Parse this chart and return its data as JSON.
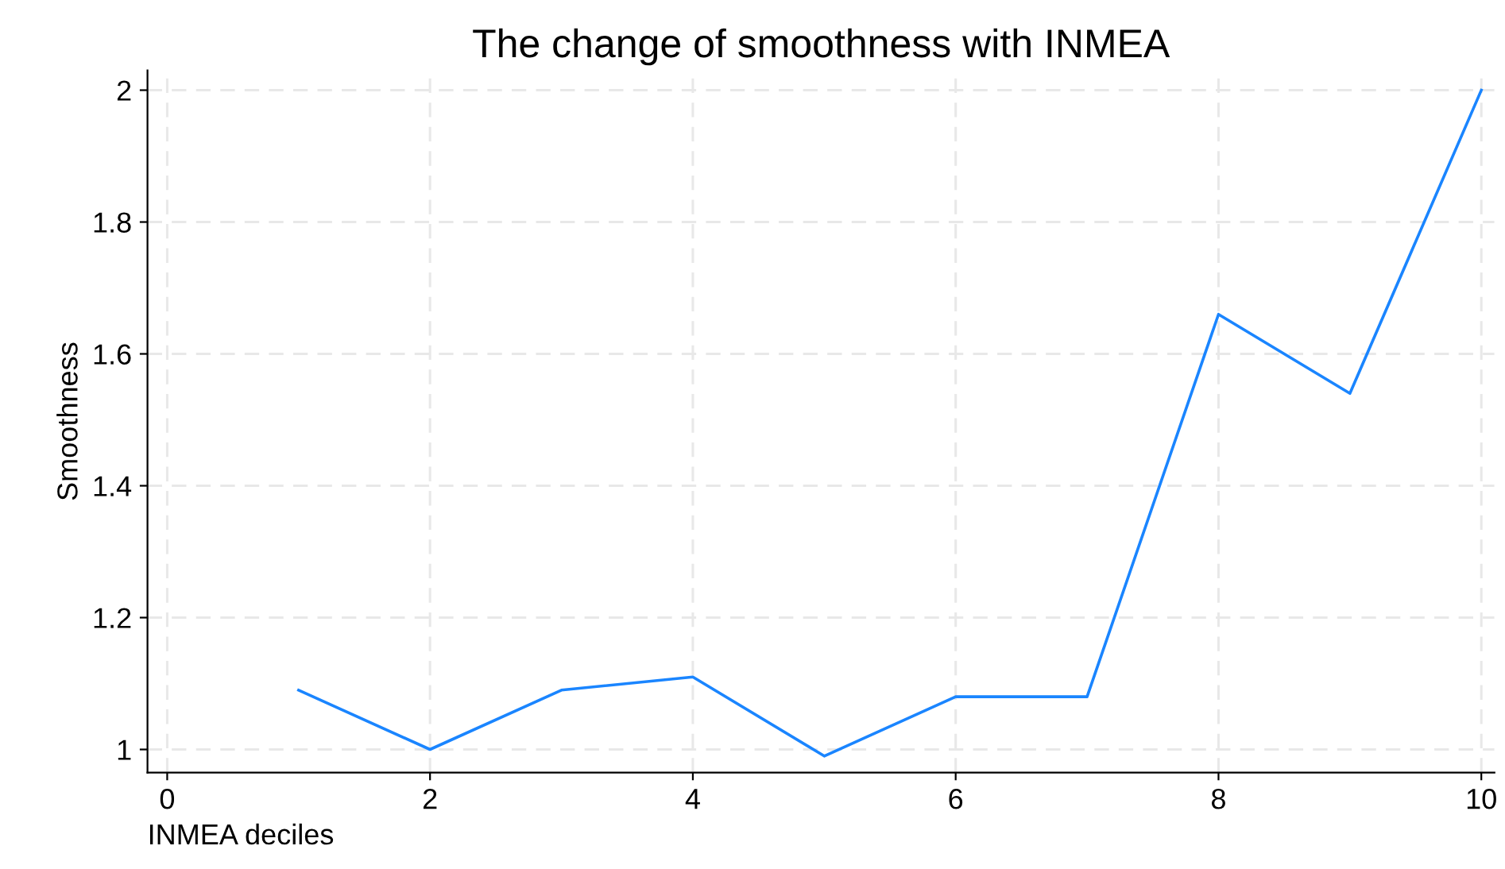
{
  "chart_data": {
    "type": "line",
    "title": "The change of smoothness with INMEA",
    "xlabel": "INMEA deciles",
    "ylabel": "Smoothness",
    "x": [
      1,
      2,
      3,
      4,
      5,
      6,
      7,
      8,
      9,
      10
    ],
    "series": [
      {
        "color": "#1a85ff",
        "values": [
          1.09,
          1.0,
          1.09,
          1.11,
          0.99,
          1.08,
          1.08,
          1.66,
          1.54,
          2.0
        ]
      }
    ],
    "xlim": [
      -0.15,
      10.1
    ],
    "ylim": [
      0.965,
      2.03
    ],
    "xticks": [
      0,
      2,
      4,
      6,
      8,
      10
    ],
    "yticks": [
      1,
      {
        "value": 1.2,
        "label": "1.2"
      },
      {
        "value": 1.4,
        "label": "1.4"
      },
      {
        "value": 1.6,
        "label": "1.6"
      },
      {
        "value": 1.8,
        "label": "1.8"
      },
      2
    ],
    "grid": true,
    "marker": "none",
    "line_style": "solid"
  }
}
